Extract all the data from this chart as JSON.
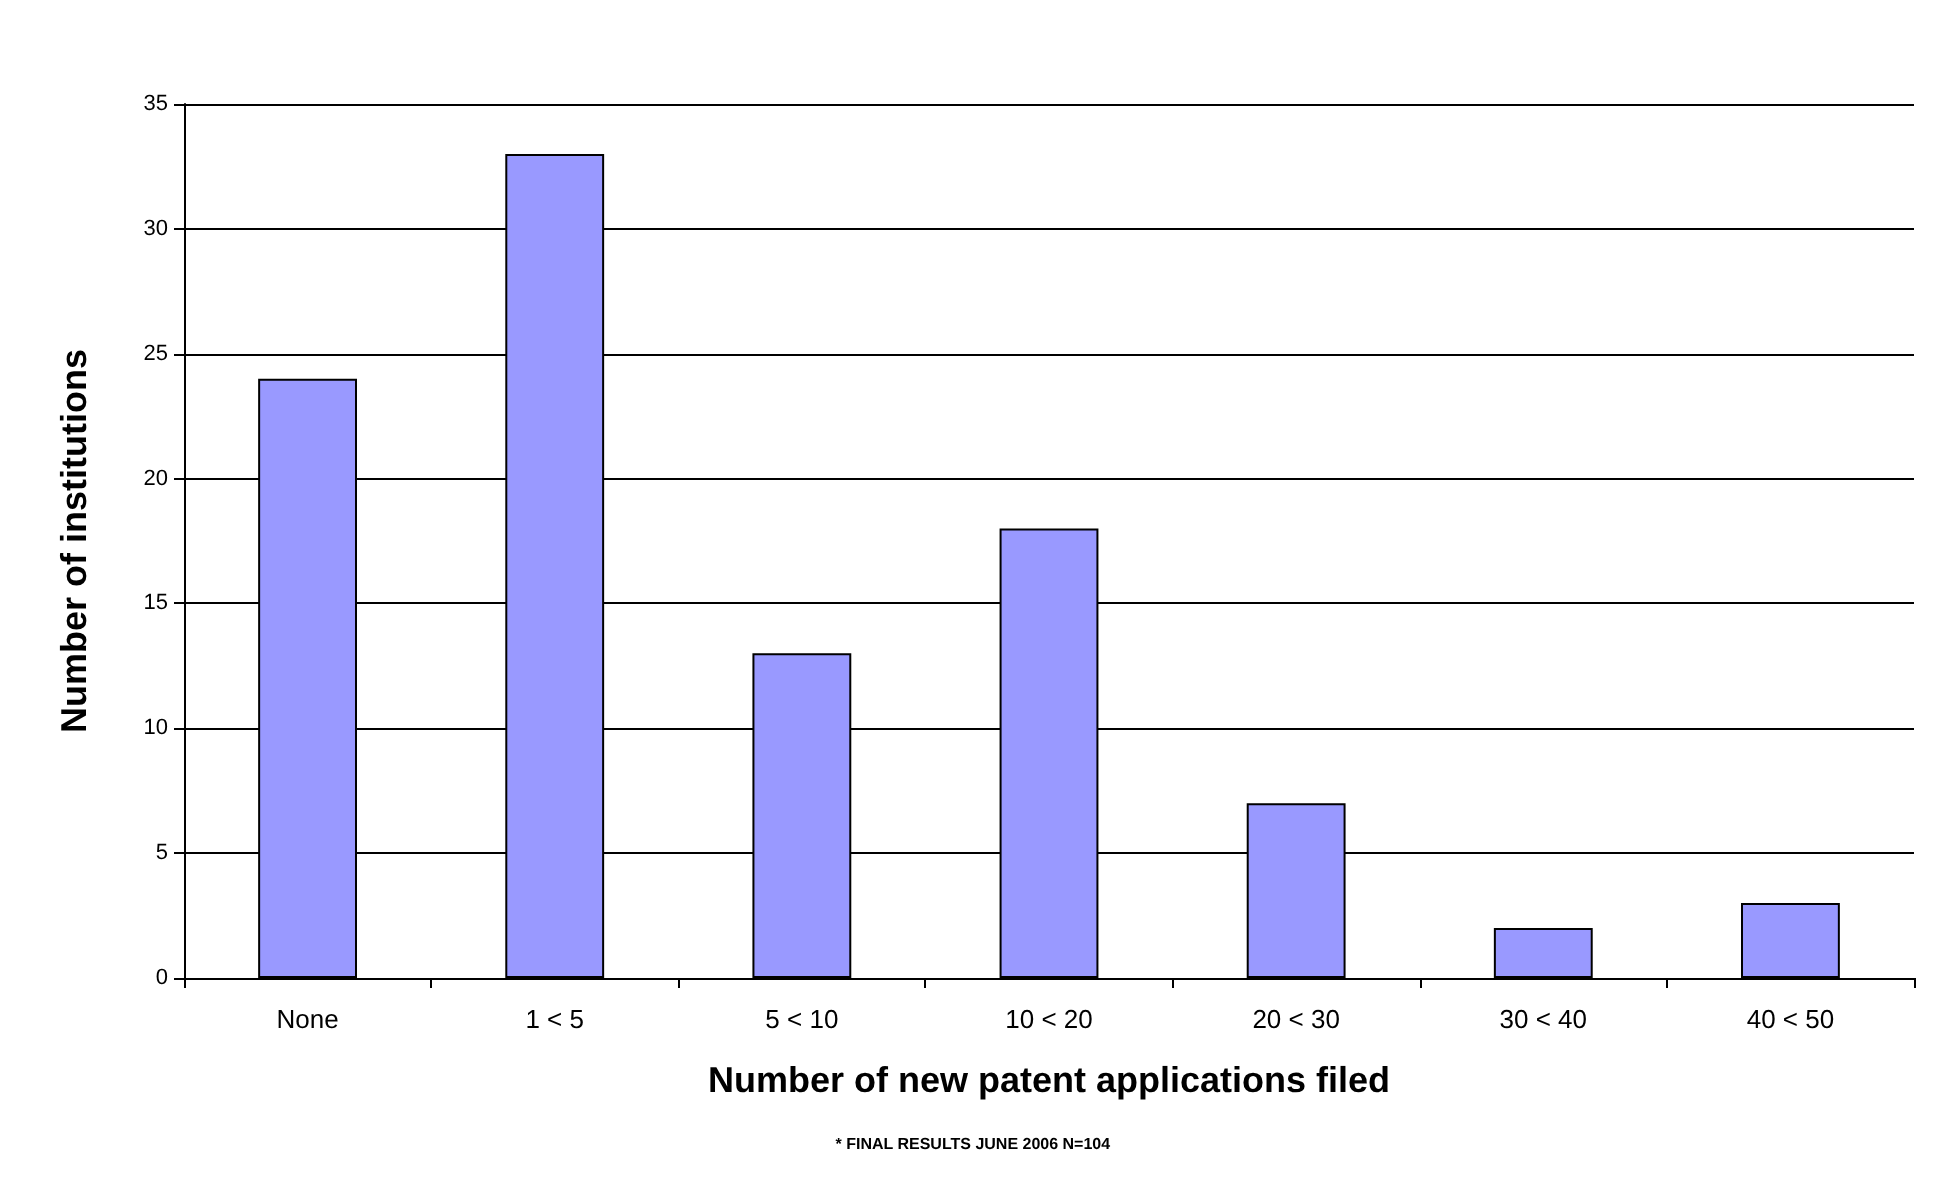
{
  "chart_data": {
    "type": "bar",
    "xlabel": "Number of new patent applications filed",
    "ylabel": "Number of institutions",
    "categories": [
      "None",
      "1 < 5",
      "5 < 10",
      "10 < 20",
      "20 < 30",
      "30 < 40",
      "40 < 50"
    ],
    "values": [
      24,
      33,
      13,
      18,
      7,
      2,
      3
    ],
    "color": "#9999ff",
    "ylim": [
      0,
      35
    ],
    "yticks": [
      0,
      5,
      10,
      15,
      20,
      25,
      30,
      35
    ],
    "grid": "y",
    "annotations": [
      "* FINAL RESULTS JUNE 2006 N=104"
    ]
  }
}
